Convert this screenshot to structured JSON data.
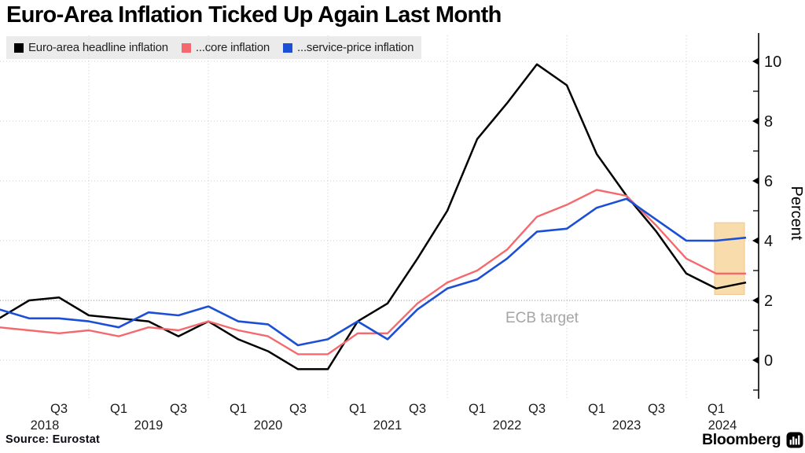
{
  "title": "Euro-Area Inflation Ticked Up Again Last Month",
  "legend": [
    {
      "label": "Euro-area headline inflation",
      "color": "#000000"
    },
    {
      "label": "...core inflation",
      "color": "#f5696e"
    },
    {
      "label": "...service-price inflation",
      "color": "#1b4fd5"
    }
  ],
  "annotations": {
    "ecb_target": "ECB target"
  },
  "source": "Source: Eurostat",
  "brand": "Bloomberg",
  "chart_data": {
    "type": "line",
    "title": "Euro-Area Inflation Ticked Up Again Last Month",
    "ylabel": "Percent",
    "yticks": [
      0,
      2,
      4,
      6,
      8,
      10
    ],
    "minor_yticks": [
      -1,
      1,
      3,
      5,
      7,
      9
    ],
    "ylim": [
      -1.3,
      10.9
    ],
    "grid": "dotted",
    "legend_position": "top-left",
    "categories": [
      "Q1 2018",
      "Q2 2018",
      "Q3 2018",
      "Q4 2018",
      "Q1 2019",
      "Q2 2019",
      "Q3 2019",
      "Q4 2019",
      "Q1 2020",
      "Q2 2020",
      "Q3 2020",
      "Q4 2020",
      "Q1 2021",
      "Q2 2021",
      "Q3 2021",
      "Q4 2021",
      "Q1 2022",
      "Q2 2022",
      "Q3 2022",
      "Q4 2022",
      "Q1 2023",
      "Q2 2023",
      "Q3 2023",
      "Q4 2023",
      "Q1 2024",
      "2024 latest"
    ],
    "series": [
      {
        "name": "Euro-area headline inflation",
        "color": "#000000",
        "width": 2.5,
        "values": [
          1.4,
          2.0,
          2.1,
          1.5,
          1.4,
          1.3,
          0.8,
          1.3,
          0.7,
          0.3,
          -0.3,
          -0.3,
          1.3,
          1.9,
          3.4,
          5.0,
          7.4,
          8.6,
          9.9,
          9.2,
          6.9,
          5.5,
          4.3,
          2.9,
          2.4,
          2.6
        ]
      },
      {
        "name": "...core inflation",
        "color": "#f5696e",
        "width": 2.4,
        "values": [
          1.1,
          1.0,
          0.9,
          1.0,
          0.8,
          1.1,
          1.0,
          1.3,
          1.0,
          0.8,
          0.2,
          0.2,
          0.9,
          0.9,
          1.9,
          2.6,
          3.0,
          3.7,
          4.8,
          5.2,
          5.7,
          5.5,
          4.5,
          3.4,
          2.9,
          2.9
        ]
      },
      {
        "name": "...service-price inflation",
        "color": "#1b4fd5",
        "width": 2.6,
        "values": [
          1.7,
          1.4,
          1.4,
          1.3,
          1.1,
          1.6,
          1.5,
          1.8,
          1.3,
          1.2,
          0.5,
          0.7,
          1.3,
          0.7,
          1.7,
          2.4,
          2.7,
          3.4,
          4.3,
          4.4,
          5.1,
          5.4,
          4.7,
          4.0,
          4.0,
          4.1
        ]
      }
    ],
    "x_tick_labels": [
      "Q3",
      "Q1",
      "Q3",
      "Q1",
      "Q3",
      "Q1",
      "Q3",
      "Q1",
      "Q3",
      "Q1",
      "Q3",
      "Q1"
    ],
    "year_labels": [
      "2018",
      "2019",
      "2020",
      "2021",
      "2022",
      "2023",
      "2024"
    ],
    "ecb_target_value": 2,
    "highlight_region": {
      "from_index": 24,
      "to_index": 25,
      "value_range": [
        2.2,
        4.6
      ],
      "fill": "#f8dcab",
      "border": "#efc48a"
    }
  }
}
